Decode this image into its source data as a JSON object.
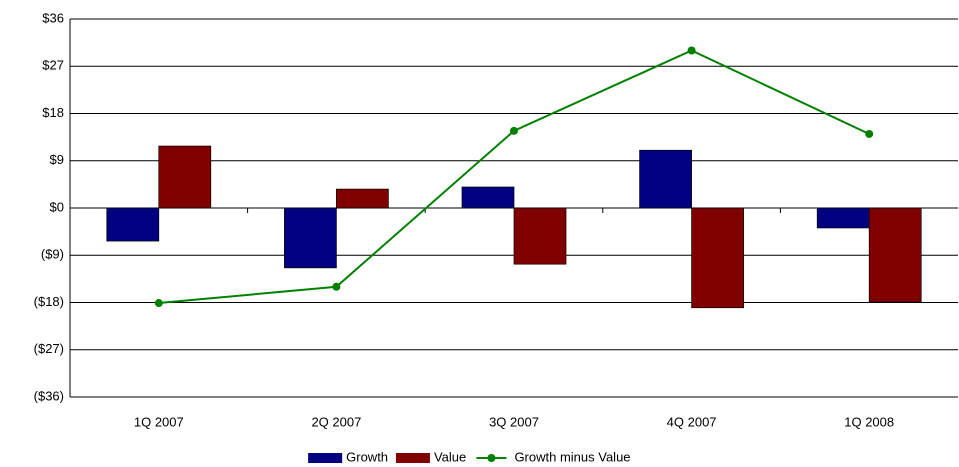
{
  "chart_data": {
    "type": "bar_line",
    "categories": [
      "1Q 2007",
      "2Q 2007",
      "3Q 2007",
      "4Q 2007",
      "1Q 2008"
    ],
    "series": [
      {
        "name": "Growth",
        "color": "#000080",
        "type": "bar",
        "values": [
          -6.3,
          -11.4,
          4.0,
          11.0,
          -3.8
        ]
      },
      {
        "name": "Value",
        "color": "#800000",
        "type": "bar",
        "values": [
          11.8,
          3.6,
          -10.7,
          -19.0,
          -17.9
        ]
      },
      {
        "name": "Growth minus Value",
        "color": "#008000",
        "type": "line",
        "values": [
          -18.1,
          -15.0,
          14.7,
          30.0,
          14.1
        ]
      }
    ],
    "ylim": [
      -36,
      36
    ],
    "yticks": [
      {
        "value": -36,
        "label": "($36)"
      },
      {
        "value": -27,
        "label": "($27)"
      },
      {
        "value": -18,
        "label": "($18)"
      },
      {
        "value": -9,
        "label": "($9)"
      },
      {
        "value": 0,
        "label": "$0"
      },
      {
        "value": 9,
        "label": "$9"
      },
      {
        "value": 18,
        "label": "$18"
      },
      {
        "value": 27,
        "label": "$27"
      },
      {
        "value": 36,
        "label": "$36"
      }
    ],
    "grid": true,
    "legend": "bottom"
  }
}
